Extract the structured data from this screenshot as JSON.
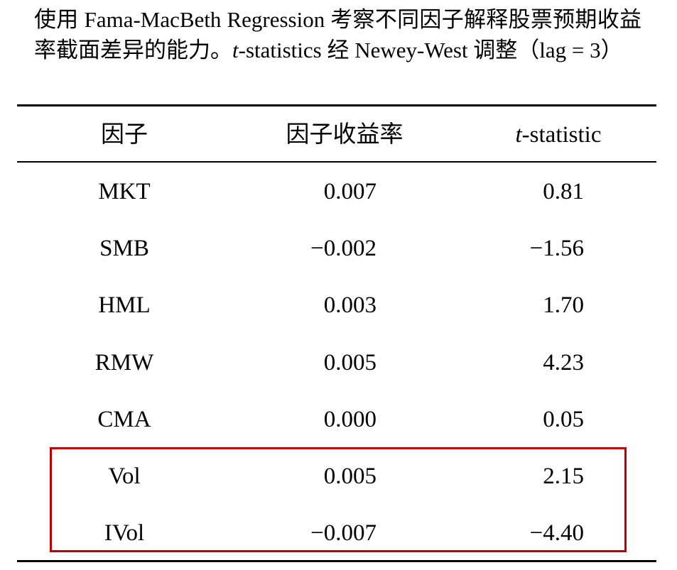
{
  "caption": {
    "parts": [
      "使用 Fama-MacBeth Regression 考察不同因子解释股票预期收益率截面差异的能力。",
      "t",
      "-statistics 经 Newey-West 调整（lag = 3）"
    ]
  },
  "table": {
    "header": [
      "因子",
      "因子收益率",
      [
        "t",
        "-statistic"
      ]
    ],
    "rows": [
      [
        "MKT",
        "0.007",
        "0.81"
      ],
      [
        "SMB",
        "−0.002",
        "−1.56"
      ],
      [
        "HML",
        "0.003",
        "1.70"
      ],
      [
        "RMW",
        "0.005",
        "4.23"
      ],
      [
        "CMA",
        "0.000",
        "0.05"
      ],
      [
        "Vol",
        "0.005",
        "2.15"
      ],
      [
        "IVol",
        "−0.007",
        "−4.40"
      ]
    ]
  }
}
